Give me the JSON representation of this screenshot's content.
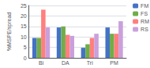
{
  "chart_data": {
    "type": "bar",
    "categories": [
      "Bi",
      "DA",
      "Tri",
      "PM"
    ],
    "series": [
      {
        "name": "FM",
        "color": "#4472C4",
        "values": [
          9.5,
          14.5,
          4.8,
          14.5
        ]
      },
      {
        "name": "FS",
        "color": "#70AD47",
        "values": [
          9.5,
          15.0,
          6.5,
          11.5
        ]
      },
      {
        "name": "RM",
        "color": "#FF7F7F",
        "values": [
          23.0,
          11.0,
          9.5,
          11.5
        ]
      },
      {
        "name": "RS",
        "color": "#C9A0DC",
        "values": [
          14.5,
          10.5,
          11.5,
          17.5
        ]
      }
    ],
    "ylabel": "%MSPE/spread",
    "ylim": [
      0,
      25
    ],
    "yticks": [
      0,
      5,
      10,
      15,
      20,
      25
    ],
    "grid": true,
    "legend": "upper right"
  }
}
